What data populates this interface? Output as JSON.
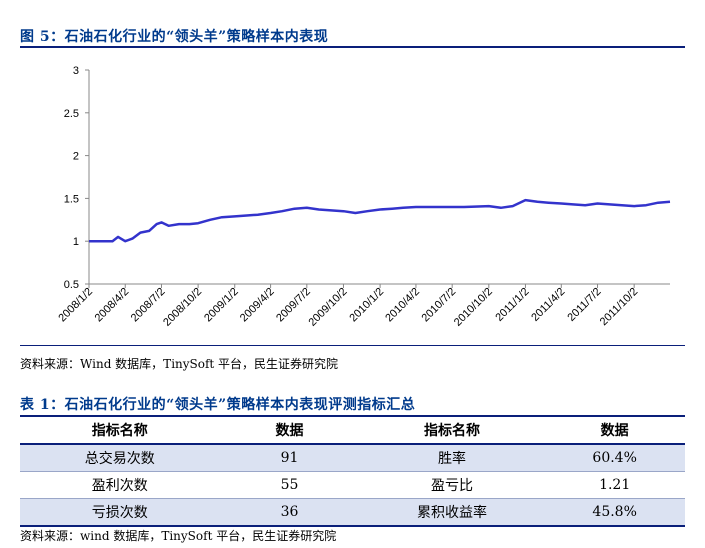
{
  "figure": {
    "title": "图 5：石油石化行业的“领头羊”策略样本内表现",
    "source": "资料来源：Wind 数据库，TinySoft 平台，民生证券研究院"
  },
  "chart_data": {
    "type": "line",
    "title": "",
    "xlabel": "",
    "ylabel": "",
    "ylim": [
      0.5,
      3
    ],
    "yticks": [
      "0.5",
      "1",
      "1.5",
      "2",
      "2.5",
      "3"
    ],
    "xticks": [
      "2008/1/2",
      "2008/4/2",
      "2008/7/2",
      "2008/10/2",
      "2009/1/2",
      "2009/4/2",
      "2009/7/2",
      "2009/10/2",
      "2010/1/2",
      "2010/4/2",
      "2010/7/2",
      "2010/10/2",
      "2011/1/2",
      "2011/4/2",
      "2011/7/2",
      "2011/10/2"
    ],
    "color": "#3333cc",
    "series": [
      {
        "x": [
          "2008/1/2",
          "2008/2/1",
          "2008/3/1",
          "2008/3/15",
          "2008/4/2",
          "2008/4/20",
          "2008/5/10",
          "2008/6/1",
          "2008/6/20",
          "2008/7/2",
          "2008/7/20",
          "2008/8/15",
          "2008/9/10",
          "2008/10/2",
          "2008/11/1",
          "2008/12/1",
          "2009/1/2",
          "2009/2/1",
          "2009/3/1",
          "2009/4/2",
          "2009/5/1",
          "2009/6/1",
          "2009/7/2",
          "2009/8/1",
          "2009/9/1",
          "2009/10/2",
          "2009/11/1",
          "2009/12/1",
          "2010/1/2",
          "2010/2/1",
          "2010/3/1",
          "2010/4/2",
          "2010/6/1",
          "2010/8/1",
          "2010/10/2",
          "2010/11/1",
          "2010/12/1",
          "2011/1/2",
          "2011/2/1",
          "2011/3/1",
          "2011/4/2",
          "2011/5/1",
          "2011/6/1",
          "2011/7/2",
          "2011/8/1",
          "2011/9/1",
          "2011/10/2",
          "2011/11/1",
          "2011/12/1",
          "2011/12/31"
        ],
        "values": [
          1.0,
          1.0,
          1.0,
          1.05,
          1.0,
          1.03,
          1.1,
          1.12,
          1.2,
          1.22,
          1.18,
          1.2,
          1.2,
          1.21,
          1.25,
          1.28,
          1.29,
          1.3,
          1.31,
          1.33,
          1.35,
          1.38,
          1.39,
          1.37,
          1.36,
          1.35,
          1.33,
          1.35,
          1.37,
          1.38,
          1.39,
          1.4,
          1.4,
          1.4,
          1.41,
          1.39,
          1.41,
          1.48,
          1.46,
          1.45,
          1.44,
          1.43,
          1.42,
          1.44,
          1.43,
          1.42,
          1.41,
          1.42,
          1.45,
          1.46
        ]
      }
    ]
  },
  "table": {
    "title": "表 1：石油石化行业的“领头羊”策略样本内表现评测指标汇总",
    "headers": [
      "指标名称",
      "数据",
      "指标名称",
      "数据"
    ],
    "rows": [
      [
        "总交易次数",
        "91",
        "胜率",
        "60.4%"
      ],
      [
        "盈利次数",
        "55",
        "盈亏比",
        "1.21"
      ],
      [
        "亏损次数",
        "36",
        "累积收益率",
        "45.8%"
      ]
    ],
    "source": "资料来源：wind 数据库，TinySoft 平台，民生证券研究院"
  }
}
